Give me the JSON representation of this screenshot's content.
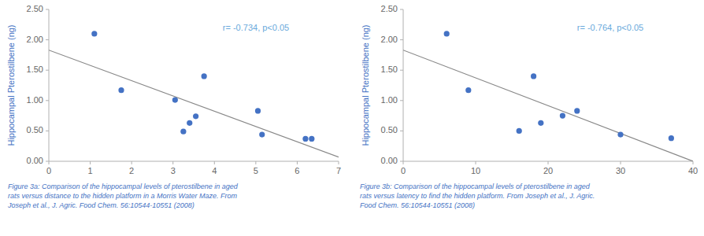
{
  "chart_data": [
    {
      "type": "scatter",
      "y_label": "Hippocampal Pterostilbene (ng)",
      "annotation": "r= -0.734, p<0.05",
      "caption": "Figure 3a: Comparison of the hippocampal levels of pterostilbene in aged\nrats versus distance to the hidden platform in a Morris Water Maze. From\nJoseph et al., J. Agric. Food Chem. 56:10544-10551 (2008)",
      "series": [
        {
          "type": "scatter",
          "color": "#4472C4",
          "x": [
            1.1,
            1.75,
            3.05,
            3.25,
            3.4,
            3.55,
            3.75,
            5.05,
            5.15,
            6.2,
            6.35
          ],
          "values": [
            2.1,
            1.17,
            1.01,
            0.49,
            0.63,
            0.74,
            1.4,
            0.83,
            0.44,
            0.37,
            0.37
          ]
        },
        {
          "type": "line",
          "color": "#888888",
          "x": [
            0,
            7
          ],
          "values": [
            1.83,
            0.07
          ]
        }
      ],
      "xlim": [
        0,
        7
      ],
      "ylim": [
        0,
        2.5
      ],
      "xticks": [
        0,
        1,
        2,
        3,
        4,
        5,
        6,
        7
      ],
      "yticks": [
        {
          "value": 0.0,
          "label": "0.00"
        },
        {
          "value": 0.5,
          "label": "0.50"
        },
        {
          "value": 1.0,
          "label": "1.00"
        },
        {
          "value": 1.5,
          "label": "1.50"
        },
        {
          "value": 2.0,
          "label": "2.00"
        },
        {
          "value": 2.5,
          "label": "2.50"
        }
      ],
      "grid": false
    },
    {
      "type": "scatter",
      "y_label": "Hippocampal Pterostilbene (ng)",
      "annotation": "r= -0.764, p<0.05",
      "caption": "Figure 3b: Comparison of the hippocampal levels of pterostilbene in aged\nrats versus latency to find the hidden platform. From Joseph et al., J. Agric.\nFood Chem. 56:10544-10551 (2008)",
      "series": [
        {
          "type": "scatter",
          "color": "#4472C4",
          "x": [
            6,
            9,
            16,
            18,
            19,
            22,
            24,
            30,
            37
          ],
          "values": [
            2.1,
            1.17,
            0.5,
            1.4,
            0.63,
            0.75,
            0.83,
            0.44,
            0.38
          ]
        },
        {
          "type": "line",
          "color": "#888888",
          "x": [
            0,
            40
          ],
          "values": [
            1.83,
            0.0
          ]
        }
      ],
      "xlim": [
        0,
        40
      ],
      "ylim": [
        0,
        2.5
      ],
      "xticks": [
        0,
        10,
        20,
        30,
        40
      ],
      "yticks": [
        {
          "value": 0.0,
          "label": "0.00"
        },
        {
          "value": 0.5,
          "label": "0.50"
        },
        {
          "value": 1.0,
          "label": "1.00"
        },
        {
          "value": 1.5,
          "label": "1.50"
        },
        {
          "value": 2.0,
          "label": "2.00"
        },
        {
          "value": 2.5,
          "label": "2.50"
        }
      ],
      "grid": false
    }
  ]
}
